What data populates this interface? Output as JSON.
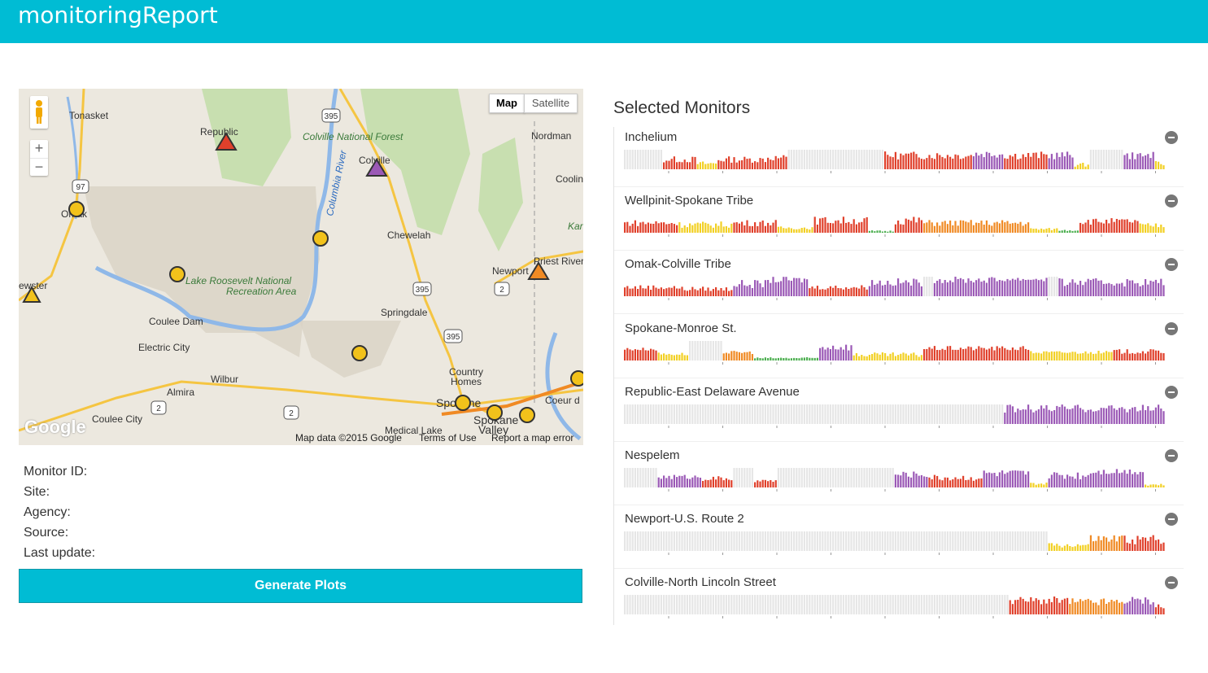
{
  "app": {
    "title": "monitoringReport"
  },
  "map": {
    "type_buttons": {
      "map": "Map",
      "satellite": "Satellite"
    },
    "zoom": {
      "in": "+",
      "out": "−"
    },
    "footer": {
      "data": "Map data ©2015 Google",
      "terms": "Terms of Use",
      "report": "Report a map error"
    },
    "logo": "Google",
    "place_labels": [
      "Tonasket",
      "Republic",
      "Colville National Forest",
      "Nordman",
      "Colville",
      "Coolin",
      "Omak",
      "Kar",
      "Chewelah",
      "Columbia River",
      "Priest River",
      "Newport",
      "ewster",
      "Lake Roosevelt National",
      "Recreation Area",
      "Springdale",
      "Coulee Dam",
      "Electric City",
      "Country",
      "Homes",
      "Wilbur",
      "Almira",
      "Coeur d",
      "Spokane",
      "Spokane",
      "Valley",
      "Coulee City",
      "Medical Lake"
    ],
    "route_shields": [
      "395",
      "97",
      "395",
      "395",
      "2",
      "2",
      "2"
    ]
  },
  "details": {
    "monitor_id_label": "Monitor ID:",
    "site_label": "Site:",
    "agency_label": "Agency:",
    "source_label": "Source:",
    "last_update_label": "Last update:"
  },
  "generate_button": "Generate Plots",
  "selected": {
    "title": "Selected Monitors",
    "monitors": [
      {
        "name": "Inchelium"
      },
      {
        "name": "Wellpinit-Spokane Tribe"
      },
      {
        "name": "Omak-Colville Tribe"
      },
      {
        "name": "Spokane-Monroe St."
      },
      {
        "name": "Republic-East Delaware Avenue"
      },
      {
        "name": "Nespelem"
      },
      {
        "name": "Newport-U.S. Route 2"
      },
      {
        "name": "Colville-North Lincoln Street"
      }
    ]
  },
  "colors": {
    "header": "#00bcd4",
    "green": "#4caf50",
    "yellow": "#f2d024",
    "orange": "#f08a24",
    "red": "#e0402b",
    "purple": "#9b59b6",
    "missing": "#e6e6e6"
  }
}
